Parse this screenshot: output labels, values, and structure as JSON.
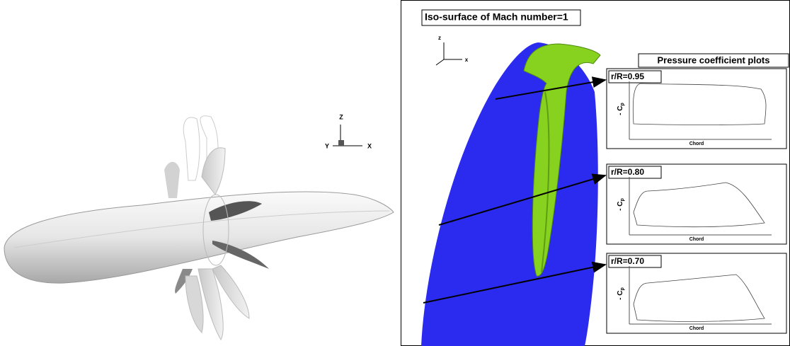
{
  "left_panel": {
    "axes": {
      "z": "Z",
      "y": "Y",
      "x": "X"
    }
  },
  "right_panel": {
    "title": "Iso-surface of Mach number=1",
    "axes": {
      "z": "z",
      "x": "x"
    },
    "plots_title": "Pressure coefficient plots",
    "plots": [
      {
        "label": "r/R=0.95",
        "y_label": {
          "main": "- C",
          "sub": "p"
        },
        "x_label": "Chord"
      },
      {
        "label": "r/R=0.80",
        "y_label": {
          "main": "- C",
          "sub": "p"
        },
        "x_label": "Chord"
      },
      {
        "label": "r/R=0.70",
        "y_label": {
          "main": "- C",
          "sub": "p"
        },
        "x_label": "Chord"
      }
    ]
  }
}
